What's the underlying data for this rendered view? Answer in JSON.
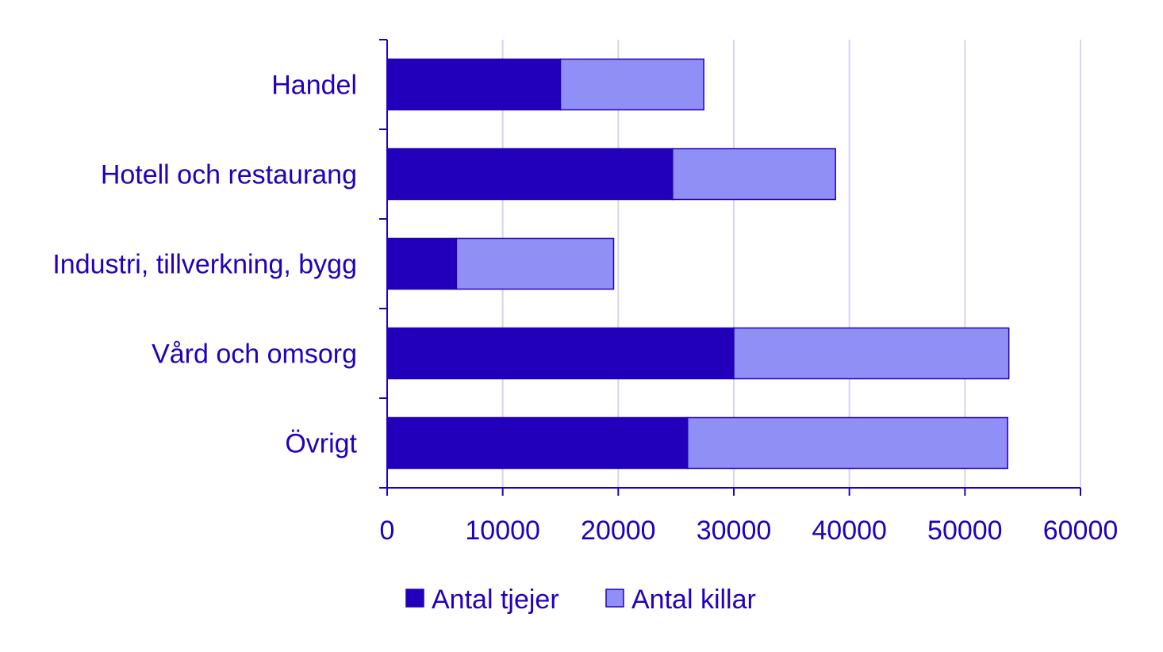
{
  "chart_data": {
    "type": "bar",
    "orientation": "horizontal",
    "stacked": true,
    "categories": [
      "Handel",
      "Hotell och restaurang",
      "Industri, tillverkning, bygg",
      "Vård och omsorg",
      "Övrigt"
    ],
    "series": [
      {
        "name": "Antal tjejer",
        "values": [
          15000,
          24700,
          6000,
          30000,
          26000
        ],
        "color": "#2200bb"
      },
      {
        "name": "Antal killar",
        "values": [
          12400,
          14100,
          13600,
          23800,
          27700
        ],
        "color": "#8f8ff5"
      }
    ],
    "x_ticks": [
      "0",
      "10000",
      "20000",
      "30000",
      "40000",
      "50000",
      "60000"
    ],
    "xlim": [
      0,
      60000
    ],
    "grid": "vertical",
    "legend_position": "bottom",
    "colors": {
      "axis": "#2200bb",
      "grid": "#d5d5ec",
      "text": "#2200bb"
    }
  }
}
